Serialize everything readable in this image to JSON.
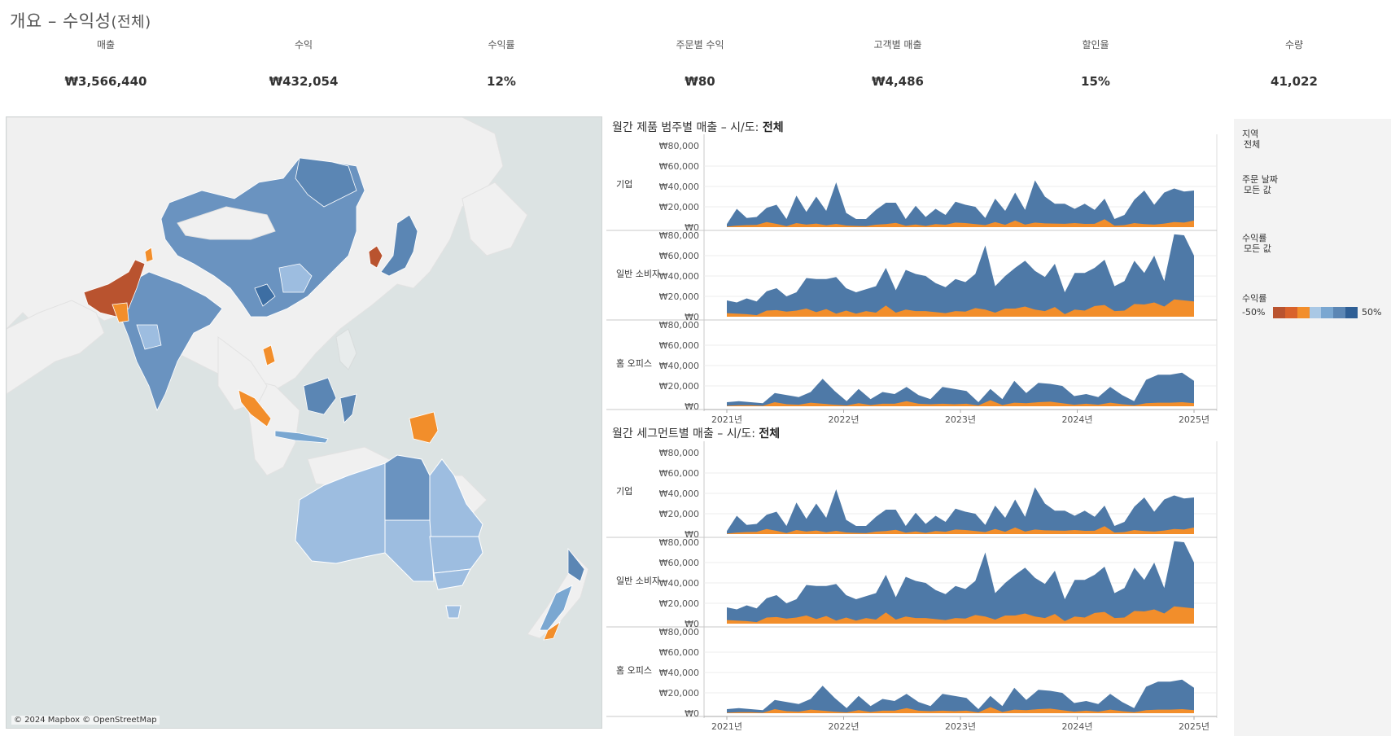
{
  "title": {
    "main": "개요 – 수익성",
    "sub": "(전체)"
  },
  "kpis": [
    {
      "label": "매출",
      "value": "₩3,566,440"
    },
    {
      "label": "수익",
      "value": "₩432,054"
    },
    {
      "label": "수익률",
      "value": "12%"
    },
    {
      "label": "주문별 수익",
      "value": "₩80"
    },
    {
      "label": "고객별 매출",
      "value": "₩4,486"
    },
    {
      "label": "할인율",
      "value": "15%"
    },
    {
      "label": "수량",
      "value": "41,022"
    }
  ],
  "map": {
    "attribution": "© 2024 Mapbox © OpenStreetMap",
    "colors": {
      "water": "#dce3e3",
      "land": "#f0f0f0"
    }
  },
  "filters": {
    "region_label": "지역",
    "region_value": "전체",
    "date_label": "주문 날짜",
    "date_value": "모든 값",
    "profit_label": "수익률",
    "profit_value": "모든 값",
    "legend_label": "수익률",
    "legend_min": "-50%",
    "legend_max": "50%",
    "legend_colors": [
      "#b9532f",
      "#d9622b",
      "#f28e2b",
      "#a9c8e5",
      "#7aa7d1",
      "#5b86b4",
      "#2f5f95"
    ]
  },
  "chart_data": [
    {
      "type": "area",
      "title": "월간 제품 범주별 매출 – 시/도:",
      "title_bold": "전체",
      "x_tick_labels": [
        "2021년",
        "2022년",
        "2023년",
        "2024년",
        "2025년"
      ],
      "y_tick_labels": [
        "₩80,000",
        "₩60,000",
        "₩40,000",
        "₩20,000",
        "₩0"
      ],
      "ylim": [
        0,
        80000
      ],
      "colors": {
        "sales": "#4e79a7",
        "profit": "#f28e2b"
      },
      "rows": [
        {
          "name": "기업",
          "total": [
            3000,
            18000,
            9000,
            10000,
            19000,
            22000,
            8000,
            31000,
            15000,
            30000,
            16000,
            44000,
            14000,
            8000,
            8000,
            17000,
            24000,
            24000,
            8000,
            21000,
            10000,
            18000,
            12000,
            25000,
            22000,
            20000,
            9000,
            28000,
            16000,
            34000,
            17000,
            46000,
            30000,
            23000,
            23000,
            18000,
            23000,
            17000,
            28000,
            8000,
            12000,
            27000,
            36000,
            22000,
            34000,
            38000,
            35000,
            36000
          ],
          "profit": [
            500,
            1500,
            2000,
            2200,
            5000,
            3200,
            1000,
            4000,
            2500,
            3500,
            1800,
            3200,
            1600,
            1200,
            1000,
            2400,
            3000,
            4200,
            1400,
            2600,
            1200,
            3000,
            2300,
            4500,
            4000,
            3000,
            2000,
            5000,
            2300,
            6500,
            2500,
            4500,
            3700,
            3500,
            3300,
            4000,
            3200,
            3300,
            7800,
            1500,
            2000,
            4000,
            3000,
            2500,
            3500,
            5000,
            4500,
            6500
          ]
        },
        {
          "name": "일반 소비자",
          "total": [
            16000,
            14000,
            18000,
            15000,
            25000,
            28000,
            20000,
            24000,
            38000,
            37000,
            37000,
            39000,
            28000,
            24000,
            27000,
            30000,
            48000,
            26000,
            46000,
            42000,
            40000,
            33000,
            29000,
            37000,
            34000,
            42000,
            70000,
            30000,
            40000,
            48000,
            55000,
            45000,
            39000,
            52000,
            24000,
            43000,
            43000,
            48000,
            56000,
            30000,
            35000,
            55000,
            43000,
            60000,
            35000,
            81000,
            80000,
            60000
          ],
          "profit": [
            3500,
            3000,
            2500,
            1500,
            6000,
            6500,
            5000,
            6000,
            8000,
            4500,
            7500,
            3000,
            6000,
            3000,
            5500,
            4000,
            11000,
            4000,
            7000,
            5500,
            5500,
            4500,
            3500,
            5500,
            5000,
            8500,
            7000,
            4000,
            8000,
            8000,
            10000,
            7000,
            5500,
            9500,
            2500,
            7000,
            6000,
            10500,
            11500,
            5500,
            6000,
            12500,
            12000,
            14000,
            10000,
            17000,
            16000,
            15000
          ]
        },
        {
          "name": "홈 오피스",
          "total": [
            4000,
            5000,
            4000,
            3000,
            13000,
            11000,
            9000,
            14000,
            27000,
            15000,
            5000,
            17000,
            7000,
            14000,
            12000,
            19000,
            11000,
            7000,
            19000,
            17000,
            15000,
            4000,
            17000,
            7000,
            25000,
            13000,
            23000,
            22000,
            20000,
            10000,
            12000,
            9000,
            19000,
            11000,
            5000,
            26000,
            31000,
            31000,
            33000,
            25000
          ],
          "profit": [
            500,
            1000,
            1000,
            500,
            4000,
            2000,
            1500,
            3500,
            2500,
            1500,
            800,
            3000,
            1200,
            2500,
            2500,
            5000,
            2500,
            2000,
            2500,
            2000,
            2500,
            800,
            6000,
            1200,
            3500,
            3000,
            4000,
            4500,
            3000,
            1500,
            2500,
            1500,
            3500,
            2000,
            1000,
            3000,
            3500,
            3500,
            4000,
            3000
          ]
        }
      ]
    },
    {
      "type": "area",
      "title": "월간 세그먼트별 매출 – 시/도:",
      "title_bold": "전체",
      "x_tick_labels": [
        "2021년",
        "2022년",
        "2023년",
        "2024년",
        "2025년"
      ],
      "y_tick_labels": [
        "₩80,000",
        "₩60,000",
        "₩40,000",
        "₩20,000",
        "₩0"
      ],
      "ylim": [
        0,
        80000
      ],
      "colors": {
        "sales": "#4e79a7",
        "profit": "#f28e2b"
      },
      "rows": [
        {
          "name": "기업",
          "total": [
            3000,
            18000,
            9000,
            10000,
            19000,
            22000,
            8000,
            31000,
            15000,
            30000,
            16000,
            44000,
            14000,
            8000,
            8000,
            17000,
            24000,
            24000,
            8000,
            21000,
            10000,
            18000,
            12000,
            25000,
            22000,
            20000,
            9000,
            28000,
            16000,
            34000,
            17000,
            46000,
            30000,
            23000,
            23000,
            18000,
            23000,
            17000,
            28000,
            8000,
            12000,
            27000,
            36000,
            22000,
            34000,
            38000,
            35000,
            36000
          ],
          "profit": [
            500,
            1500,
            2000,
            2200,
            5000,
            3200,
            1000,
            4000,
            2500,
            3500,
            1800,
            3200,
            1600,
            1200,
            1000,
            2400,
            3000,
            4200,
            1400,
            2600,
            1200,
            3000,
            2300,
            4500,
            4000,
            3000,
            2000,
            5000,
            2300,
            6500,
            2500,
            4500,
            3700,
            3500,
            3300,
            4000,
            3200,
            3300,
            7800,
            1500,
            2000,
            4000,
            3000,
            2500,
            3500,
            5000,
            4500,
            6500
          ]
        },
        {
          "name": "일반 소비자",
          "total": [
            16000,
            14000,
            18000,
            15000,
            25000,
            28000,
            20000,
            24000,
            38000,
            37000,
            37000,
            39000,
            28000,
            24000,
            27000,
            30000,
            48000,
            26000,
            46000,
            42000,
            40000,
            33000,
            29000,
            37000,
            34000,
            42000,
            70000,
            30000,
            40000,
            48000,
            55000,
            45000,
            39000,
            52000,
            24000,
            43000,
            43000,
            48000,
            56000,
            30000,
            35000,
            55000,
            43000,
            60000,
            35000,
            81000,
            80000,
            60000
          ],
          "profit": [
            3500,
            3000,
            2500,
            1500,
            6000,
            6500,
            5000,
            6000,
            8000,
            4500,
            7500,
            3000,
            6000,
            3000,
            5500,
            4000,
            11000,
            4000,
            7000,
            5500,
            5500,
            4500,
            3500,
            5500,
            5000,
            8500,
            7000,
            4000,
            8000,
            8000,
            10000,
            7000,
            5500,
            9500,
            2500,
            7000,
            6000,
            10500,
            11500,
            5500,
            6000,
            12500,
            12000,
            14000,
            10000,
            17000,
            16000,
            15000
          ]
        },
        {
          "name": "홈 오피스",
          "total": [
            4000,
            5000,
            4000,
            3000,
            13000,
            11000,
            9000,
            14000,
            27000,
            15000,
            5000,
            17000,
            7000,
            14000,
            12000,
            19000,
            11000,
            7000,
            19000,
            17000,
            15000,
            4000,
            17000,
            7000,
            25000,
            13000,
            23000,
            22000,
            20000,
            10000,
            12000,
            9000,
            19000,
            11000,
            5000,
            26000,
            31000,
            31000,
            33000,
            25000
          ],
          "profit": [
            500,
            1000,
            1000,
            500,
            4000,
            2000,
            1500,
            3500,
            2500,
            1500,
            800,
            3000,
            1200,
            2500,
            2500,
            5000,
            2500,
            2000,
            2500,
            2000,
            2500,
            800,
            6000,
            1200,
            3500,
            3000,
            4000,
            4500,
            3000,
            1500,
            2500,
            1500,
            3500,
            2000,
            1000,
            3000,
            3500,
            3500,
            4000,
            3000
          ]
        }
      ]
    }
  ]
}
